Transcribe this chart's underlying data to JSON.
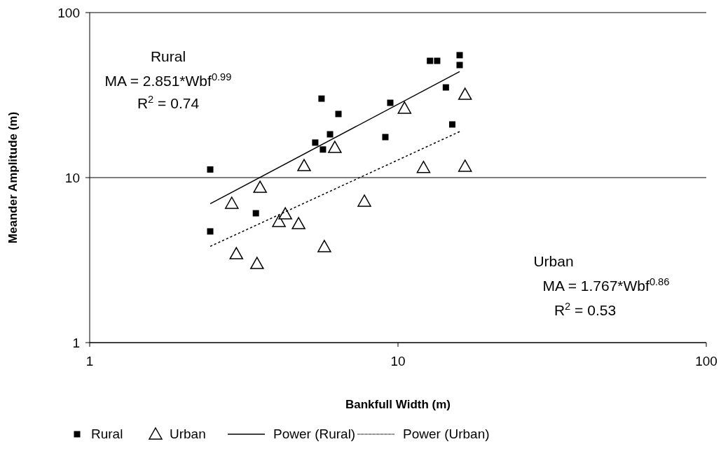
{
  "chart_data": {
    "type": "scatter",
    "xlabel": "Bankfull Width (m)",
    "ylabel": "Meander Amplitude (m)",
    "log": "xy",
    "xlim": [
      1,
      100
    ],
    "ylim": [
      1,
      100
    ],
    "xticks": [
      1,
      10,
      100
    ],
    "yticks": [
      1,
      10,
      100
    ],
    "grid": "y",
    "legend": "bottom",
    "annotations": [
      "Rural",
      "MA = 2.851*Wbf$^{0.99}$",
      "R$^{2}$ = 0.74",
      "Urban",
      "MA = 1.767*Wbf$^{0.86}$",
      "R$^{2}$ = 0.53"
    ],
    "series": [
      {
        "name": "Rural",
        "marker": "square",
        "color": "#000000",
        "x": [
          2.46,
          2.46,
          3.46,
          5.65,
          5.39,
          5.71,
          6.02,
          6.41,
          9.44,
          9.1,
          12.7,
          13.4,
          15.85,
          15.85,
          14.3,
          15.0
        ],
        "values": [
          11.2,
          4.72,
          6.08,
          30.1,
          16.3,
          14.8,
          18.3,
          24.3,
          28.4,
          17.6,
          51,
          51,
          55.2,
          48.1,
          35.2,
          21.0
        ]
      },
      {
        "name": "Urban",
        "marker": "triangle",
        "color": "#000000",
        "x": [
          2.89,
          2.99,
          3.49,
          3.57,
          4.11,
          4.31,
          4.76,
          4.96,
          5.77,
          6.24,
          7.78,
          10.5,
          12.1,
          16.5,
          16.5
        ],
        "values": [
          6.97,
          3.45,
          3.01,
          8.72,
          5.41,
          6.02,
          5.25,
          11.8,
          3.81,
          15.2,
          7.18,
          26.3,
          11.5,
          11.7,
          31.9
        ]
      },
      {
        "name": "Power (Rural)",
        "type": "line",
        "line_style": "solid",
        "color": "#000000",
        "x": [
          2.46,
          15.85
        ],
        "values": [
          6.94,
          43.9
        ]
      },
      {
        "name": "Power (Urban)",
        "type": "line",
        "line_style": "dotted",
        "color": "#000000",
        "x": [
          2.46,
          15.85
        ],
        "values": [
          3.83,
          19.0
        ]
      }
    ]
  }
}
